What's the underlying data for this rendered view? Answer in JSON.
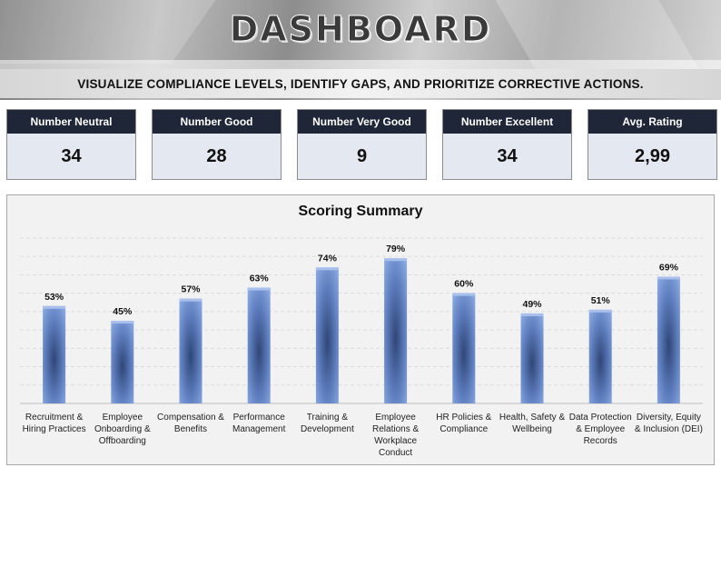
{
  "header": {
    "title": "DASHBOARD",
    "subtitle": "VISUALIZE COMPLIANCE LEVELS, IDENTIFY GAPS, AND PRIORITIZE CORRECTIVE ACTIONS."
  },
  "kpis": [
    {
      "label": "Number Neutral",
      "value": "34"
    },
    {
      "label": "Number Good",
      "value": "28"
    },
    {
      "label": "Number Very Good",
      "value": "9"
    },
    {
      "label": "Number Excellent",
      "value": "34"
    },
    {
      "label": "Avg. Rating",
      "value": "2,99"
    }
  ],
  "chart_data": {
    "type": "bar",
    "title": "Scoring Summary",
    "categories": [
      [
        "Recruitment &",
        "Hiring Practices"
      ],
      [
        "Employee",
        "Onboarding &",
        "Offboarding"
      ],
      [
        "Compensation &",
        "Benefits"
      ],
      [
        "Performance",
        "Management"
      ],
      [
        "Training &",
        "Development"
      ],
      [
        "Employee",
        "Relations &",
        "Workplace",
        "Conduct"
      ],
      [
        "HR Policies &",
        "Compliance"
      ],
      [
        "Health, Safety &",
        "Wellbeing"
      ],
      [
        "Data Protection",
        "& Employee",
        "Records"
      ],
      [
        "Diversity, Equity",
        "& Inclusion (DEI)"
      ]
    ],
    "values": [
      53,
      45,
      57,
      63,
      74,
      79,
      60,
      49,
      51,
      69
    ],
    "data_labels": [
      "53%",
      "45%",
      "57%",
      "63%",
      "74%",
      "79%",
      "60%",
      "49%",
      "51%",
      "69%"
    ],
    "value_unit": "%",
    "ylim": [
      0,
      90
    ],
    "grid": true,
    "bar_color": "#7f9fd8"
  }
}
